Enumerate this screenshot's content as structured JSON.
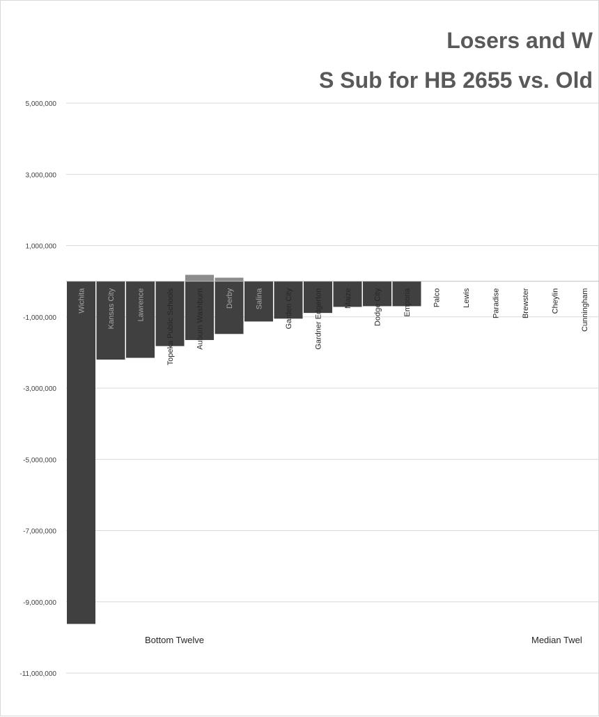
{
  "chart_data": {
    "type": "bar",
    "title": "Losers and W",
    "subtitle": "S Sub for HB 2655 vs. Old",
    "ylim": [
      -11000000,
      5000000
    ],
    "yticks": [
      5000000,
      3000000,
      1000000,
      -1000000,
      -3000000,
      -5000000,
      -7000000,
      -9000000,
      -11000000
    ],
    "ytick_labels": [
      "5,000,000",
      "3,000,000",
      "1,000,000",
      "-1,000,000",
      "-3,000,000",
      "-5,000,000",
      "-7,000,000",
      "-9,000,000",
      "-11,000,000"
    ],
    "grid": true,
    "categories": [
      "Wichita",
      "Kansas City",
      "Lawrence",
      "Topeka Public Schools",
      "Auburn Washburn",
      "Derby",
      "Salina",
      "Garden City",
      "Gardner Edgerton",
      "Maize",
      "Dodge City",
      "Emporia",
      "Palco",
      "Lewis",
      "Paradise",
      "Brewster",
      "Cheylin",
      "Cunningham"
    ],
    "series": [
      {
        "values": [
          -9620000,
          -2200000,
          -2150000,
          -1820000,
          -1650000,
          -1480000,
          -1130000,
          -1050000,
          -890000,
          -720000,
          -700000,
          -700000,
          0,
          0,
          0,
          0,
          0,
          0
        ]
      },
      {
        "values": [
          0,
          0,
          0,
          0,
          180000,
          100000,
          0,
          0,
          0,
          0,
          0,
          0,
          0,
          0,
          0,
          0,
          0,
          0
        ]
      }
    ],
    "group_labels": [
      "Bottom Twelve",
      "Median Twel"
    ],
    "colors": {
      "bar": "#404040",
      "bar_secondary": "#8c8c8c",
      "label_inside": "#a6a6a6",
      "label_outside": "#262626"
    }
  }
}
